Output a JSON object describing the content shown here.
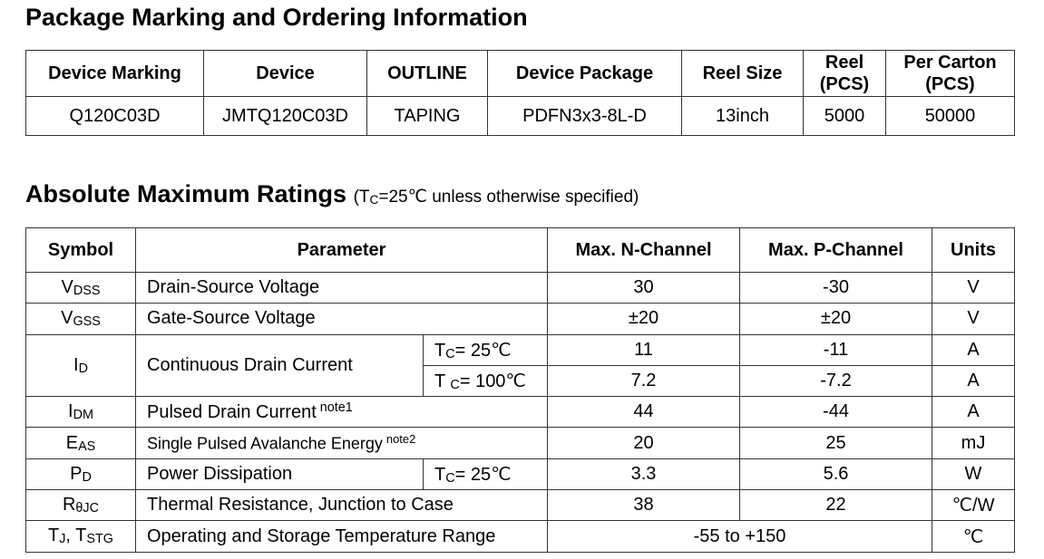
{
  "ordering": {
    "title": "Package Marking and Ordering Information",
    "header": [
      "Device Marking",
      "Device",
      "OUTLINE",
      "Device Package",
      "Reel Size",
      "Reel (PCS)",
      "Per Carton (PCS)"
    ],
    "rows": [
      [
        "Q120C03D",
        "JMTQ120C03D",
        "TAPING",
        "PDFN3x3-8L-D",
        "13inch",
        "5000",
        "50000"
      ]
    ]
  },
  "ratings": {
    "title": "Absolute Maximum Ratings",
    "condition": [
      "(T",
      "C",
      "=25℃ unless otherwise specified)"
    ],
    "header": [
      "Symbol",
      "Parameter",
      "Max. N-Channel",
      "Max. P-Channel",
      "Units"
    ],
    "rows": [
      {
        "symbol": [
          "V",
          "DSS"
        ],
        "parameter": "Drain-Source Voltage",
        "n": "30",
        "p": "-30",
        "units": "V"
      },
      {
        "symbol": [
          "V",
          "GSS"
        ],
        "parameter": "Gate-Source Voltage",
        "n": "±20",
        "p": "±20",
        "units": "V"
      },
      {
        "symbol": [
          "I",
          "D"
        ],
        "parameter": "Continuous Drain Current",
        "condition": [
          "T",
          "C",
          "= 25℃"
        ],
        "n": "11",
        "p": "-11",
        "units": "A"
      },
      {
        "condition": [
          "T ",
          "C",
          "= 100℃"
        ],
        "n": "7.2",
        "p": "-7.2",
        "units": "A"
      },
      {
        "symbol": [
          "I",
          "DM"
        ],
        "parameter": "Pulsed Drain Current",
        "note": "note1",
        "n": "44",
        "p": "-44",
        "units": "A"
      },
      {
        "symbol": [
          "E",
          "AS"
        ],
        "parameter": "Single Pulsed Avalanche Energy",
        "note": "note2",
        "n": "20",
        "p": "25",
        "units": "mJ"
      },
      {
        "symbol": [
          "P",
          "D"
        ],
        "parameter": "Power Dissipation",
        "condition": [
          "T",
          "C",
          "= 25℃"
        ],
        "n": "3.3",
        "p": "5.6",
        "units": "W"
      },
      {
        "symbol": [
          "R",
          "θJC"
        ],
        "parameter": "Thermal Resistance, Junction to Case",
        "n": "38",
        "p": "22",
        "units": "℃/W"
      },
      {
        "symbol": [
          "T",
          "J",
          ", T",
          "STG"
        ],
        "parameter": "Operating and Storage Temperature Range",
        "range": "-55 to +150",
        "units": "℃"
      }
    ]
  }
}
